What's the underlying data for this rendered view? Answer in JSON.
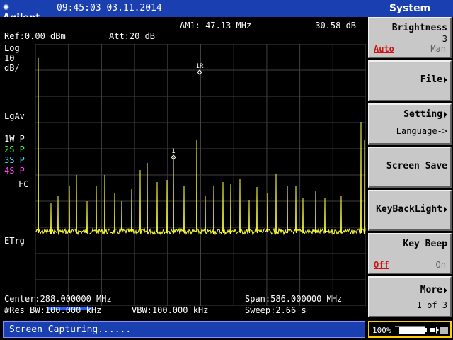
{
  "header": {
    "brand": "Agilent",
    "datetime": "09:45:03  03.11.2014",
    "menu_title": "System"
  },
  "screen": {
    "marker_delta": "ΔM1:-47.13 MHz",
    "marker_value": "-30.58 dB",
    "ref": "Ref:0.00 dBm",
    "att": "Att:20 dB",
    "scale_lines": [
      "Log",
      "10",
      "dB/"
    ],
    "detector": "LgAv",
    "traces": [
      "1W P",
      "2S P",
      "3S P",
      "4S P"
    ],
    "fc": "FC",
    "etrg": "ETrg",
    "marker1_label": "1",
    "marker1r_label": "1R",
    "center": "Center:288.000000 MHz",
    "span": "Span:586.000000 MHz",
    "res_bw": "#Res BW:100.000 kHz",
    "vbw": "VBW:100.000 kHz",
    "sweep": "Sweep:2.66 s"
  },
  "colors": {
    "trace": "#ffff40",
    "grid": "#404040",
    "topbar": "#1a3fb0"
  },
  "softkeys": [
    {
      "title": "Brightness",
      "value": "3",
      "left": "Auto",
      "right": "Man"
    },
    {
      "title": "File"
    },
    {
      "title": "Setting",
      "sub": "Language->"
    },
    {
      "title": "Screen Save"
    },
    {
      "title": "KeyBackLight"
    },
    {
      "title": "Key Beep",
      "left": "Off",
      "right": "On"
    },
    {
      "title": "More",
      "sub": "1 of 3"
    }
  ],
  "status": {
    "message": "Screen Capturing......",
    "battery": "100%"
  }
}
